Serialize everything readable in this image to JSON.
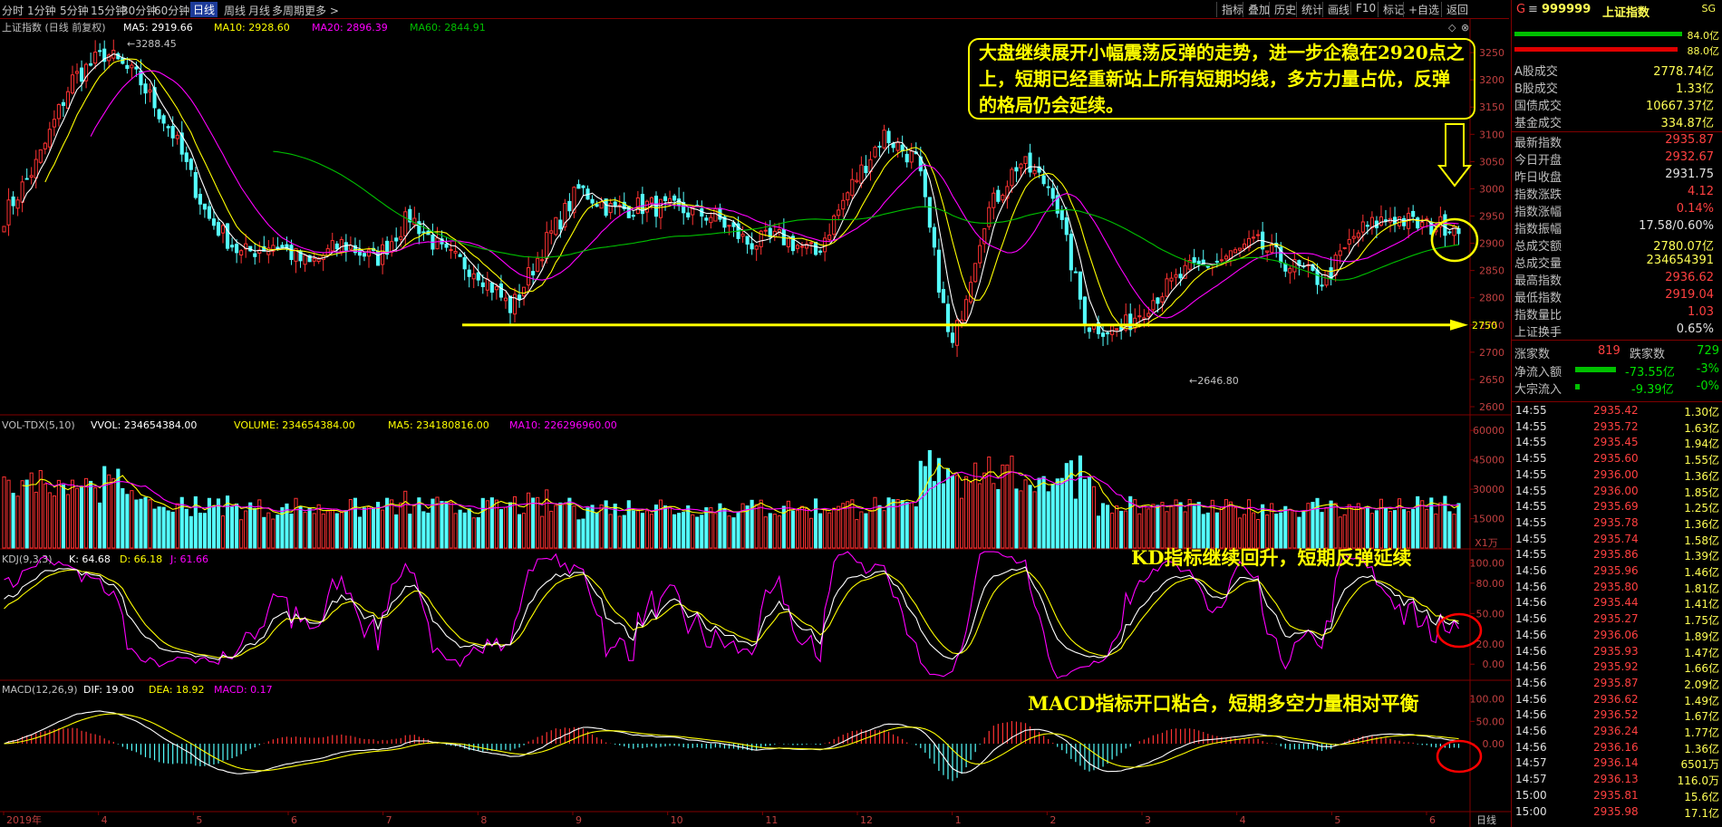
{
  "toolbar": {
    "timeframes": [
      "分时",
      "1分钟",
      "5分钟",
      "15分钟",
      "30分钟",
      "60分钟",
      "日线",
      "周线",
      "月线",
      "多周期",
      "更多 >"
    ],
    "active": "日线",
    "right_buttons": [
      "指标",
      "叠加",
      "历史",
      "统计",
      "画线",
      "F10",
      "标记",
      "+自选",
      "返回"
    ]
  },
  "main_panel": {
    "title": "上证指数 (日线 前复权)",
    "ma5_label": "MA5: 2919.66",
    "ma10_label": "MA10: 2928.60",
    "ma20_label": "MA20: 2896.39",
    "ma60_label": "MA60: 2844.91",
    "high_label": "3288.45",
    "low_label": "2646.80",
    "right_marker": "2750",
    "callout": "大盘继续展开小幅震荡反弹的走势，进一步企稳在2920点之上，短期已经重新站上所有短期均线，多方力量占优，反弹的格局仍会延续。"
  },
  "vol_panel": {
    "title": "VOL-TDX(5,10)",
    "vvol_label": "VVOL: 234654384.00",
    "volume_label": "VOLUME: 234654384.00",
    "ma5_label": "MA5: 234180816.00",
    "ma10_label": "MA10: 226296960.00",
    "unit": "X1万"
  },
  "kdj_panel": {
    "title": "KDJ(9,3,3)",
    "k_label": "K: 64.68",
    "d_label": "D: 66.18",
    "j_label": "J: 61.66",
    "note": "KD指标继续回升，短期反弹延续"
  },
  "macd_panel": {
    "title": "MACD(12,26,9)",
    "dif_label": "DIF: 19.00",
    "dea_label": "DEA: 18.92",
    "macd_label": "MACD: 0.17",
    "note": "MACD指标开口粘合，短期多空力量相对平衡"
  },
  "x_axis_label": "日线",
  "chart_data": [
    {
      "type": "candlestick",
      "title": "上证指数 (日线 前复权)",
      "y_ticks": [
        2600,
        2650,
        2700,
        2750,
        2800,
        2850,
        2900,
        2950,
        3000,
        3050,
        3100,
        3150,
        3200,
        3250
      ],
      "ylim": [
        2590,
        3310
      ],
      "x_ticks": [
        "2019年",
        "4",
        "5",
        "6",
        "7",
        "8",
        "9",
        "10",
        "11",
        "12",
        "1",
        "2",
        "3",
        "4",
        "5",
        "6"
      ],
      "close_anchors": [
        2950,
        3050,
        3200,
        3250,
        3200,
        3100,
        2950,
        2880,
        2900,
        2860,
        2900,
        2870,
        2950,
        2880,
        2850,
        2780,
        2900,
        3000,
        2960,
        2970,
        2960,
        2950,
        2900,
        2910,
        2880,
        3000,
        3100,
        3050,
        2700,
        2950,
        3050,
        3000,
        2750,
        2740,
        2800,
        2850,
        2870,
        2900,
        2860,
        2830,
        2920,
        2950,
        2930,
        2936
      ],
      "annotations": [
        "3288.45",
        "2646.80"
      ],
      "reference_level": 2750,
      "marker_value": 2750
    },
    {
      "type": "bar",
      "title": "VOL-TDX(5,10)",
      "y_ticks": [
        15000,
        30000,
        45000,
        60000
      ],
      "ylim": [
        0,
        67000
      ],
      "unit": "X1万"
    },
    {
      "type": "line",
      "title": "KDJ(9,3,3)",
      "series": [
        {
          "name": "K"
        },
        {
          "name": "D"
        },
        {
          "name": "J"
        }
      ],
      "y_ticks": [
        0,
        20,
        50,
        80,
        100
      ],
      "ylim": [
        -15,
        112
      ],
      "y_tick_labels": [
        "0.00",
        "20.00",
        "50.00",
        "80.00",
        "100.00"
      ]
    },
    {
      "type": "bar",
      "title": "MACD(12,26,9)",
      "series": [
        {
          "name": "DIF"
        },
        {
          "name": "DEA"
        },
        {
          "name": "MACD"
        }
      ],
      "y_ticks": [
        0,
        50,
        100
      ],
      "ylim": [
        -150,
        140
      ],
      "y_tick_labels": [
        "0.00",
        "50.00",
        "100.00"
      ]
    }
  ],
  "quote_panel": {
    "code": "999999",
    "name": "上证指数",
    "corner": "SG",
    "bar_values": [
      "84.0亿",
      "88.0亿"
    ],
    "rows": [
      {
        "label": "A股成交",
        "value": "2778.74亿",
        "color": "#ffff55"
      },
      {
        "label": "B股成交",
        "value": "1.33亿",
        "color": "#ffff55"
      },
      {
        "label": "国债成交",
        "value": "10667.37亿",
        "color": "#ffff55"
      },
      {
        "label": "基金成交",
        "value": "334.87亿",
        "color": "#ffff55"
      },
      {
        "label": "最新指数",
        "value": "2935.87",
        "color": "#ff4040"
      },
      {
        "label": "今日开盘",
        "value": "2932.67",
        "color": "#ff4040"
      },
      {
        "label": "昨日收盘",
        "value": "2931.75",
        "color": "#e0e0e0"
      },
      {
        "label": "指数涨跌",
        "value": "4.12",
        "color": "#ff4040"
      },
      {
        "label": "指数涨幅",
        "value": "0.14%",
        "color": "#ff4040"
      },
      {
        "label": "指数振幅",
        "value": "17.58/0.60%",
        "color": "#e0e0e0"
      },
      {
        "label": "总成交额",
        "value": "2780.07亿",
        "color": "#ffff55"
      },
      {
        "label": "总成交量",
        "value": "234654391",
        "color": "#ffff55"
      },
      {
        "label": "最高指数",
        "value": "2936.62",
        "color": "#ff4040"
      },
      {
        "label": "最低指数",
        "value": "2919.04",
        "color": "#ff4040"
      },
      {
        "label": "指数量比",
        "value": "1.03",
        "color": "#ff4040"
      },
      {
        "label": "上证换手",
        "value": "0.65%",
        "color": "#e0e0e0"
      }
    ],
    "up_label": "涨家数",
    "up_value": "819",
    "down_label": "跌家数",
    "down_value": "729",
    "flow_label": "净流入额",
    "flow_value": "-73.55亿",
    "flow_pct": "-3%",
    "big_label": "大宗流入",
    "big_value": "-9.39亿",
    "big_pct": "-0%"
  },
  "ticks": [
    {
      "time": "14:55",
      "price": "2935.42",
      "vol": "1.30亿"
    },
    {
      "time": "14:55",
      "price": "2935.72",
      "vol": "1.63亿"
    },
    {
      "time": "14:55",
      "price": "2935.45",
      "vol": "1.94亿"
    },
    {
      "time": "14:55",
      "price": "2935.60",
      "vol": "1.55亿"
    },
    {
      "time": "14:55",
      "price": "2936.00",
      "vol": "1.36亿"
    },
    {
      "time": "14:55",
      "price": "2936.00",
      "vol": "1.85亿"
    },
    {
      "time": "14:55",
      "price": "2935.69",
      "vol": "1.25亿"
    },
    {
      "time": "14:55",
      "price": "2935.78",
      "vol": "1.36亿"
    },
    {
      "time": "14:55",
      "price": "2935.74",
      "vol": "1.58亿"
    },
    {
      "time": "14:55",
      "price": "2935.86",
      "vol": "1.39亿"
    },
    {
      "time": "14:56",
      "price": "2935.96",
      "vol": "1.46亿"
    },
    {
      "time": "14:56",
      "price": "2935.80",
      "vol": "1.81亿"
    },
    {
      "time": "14:56",
      "price": "2935.44",
      "vol": "1.41亿"
    },
    {
      "time": "14:56",
      "price": "2935.27",
      "vol": "1.75亿"
    },
    {
      "time": "14:56",
      "price": "2936.06",
      "vol": "1.89亿"
    },
    {
      "time": "14:56",
      "price": "2935.93",
      "vol": "1.47亿"
    },
    {
      "time": "14:56",
      "price": "2935.92",
      "vol": "1.66亿"
    },
    {
      "time": "14:56",
      "price": "2935.87",
      "vol": "2.09亿"
    },
    {
      "time": "14:56",
      "price": "2936.62",
      "vol": "1.49亿"
    },
    {
      "time": "14:56",
      "price": "2936.52",
      "vol": "1.67亿"
    },
    {
      "time": "14:56",
      "price": "2936.24",
      "vol": "1.77亿"
    },
    {
      "time": "14:56",
      "price": "2936.16",
      "vol": "1.36亿"
    },
    {
      "time": "14:57",
      "price": "2936.14",
      "vol": "6501万"
    },
    {
      "time": "14:57",
      "price": "2936.13",
      "vol": "116.0万"
    },
    {
      "time": "15:00",
      "price": "2935.81",
      "vol": "15.6亿"
    },
    {
      "time": "15:00",
      "price": "2935.98",
      "vol": "17.1亿"
    }
  ]
}
